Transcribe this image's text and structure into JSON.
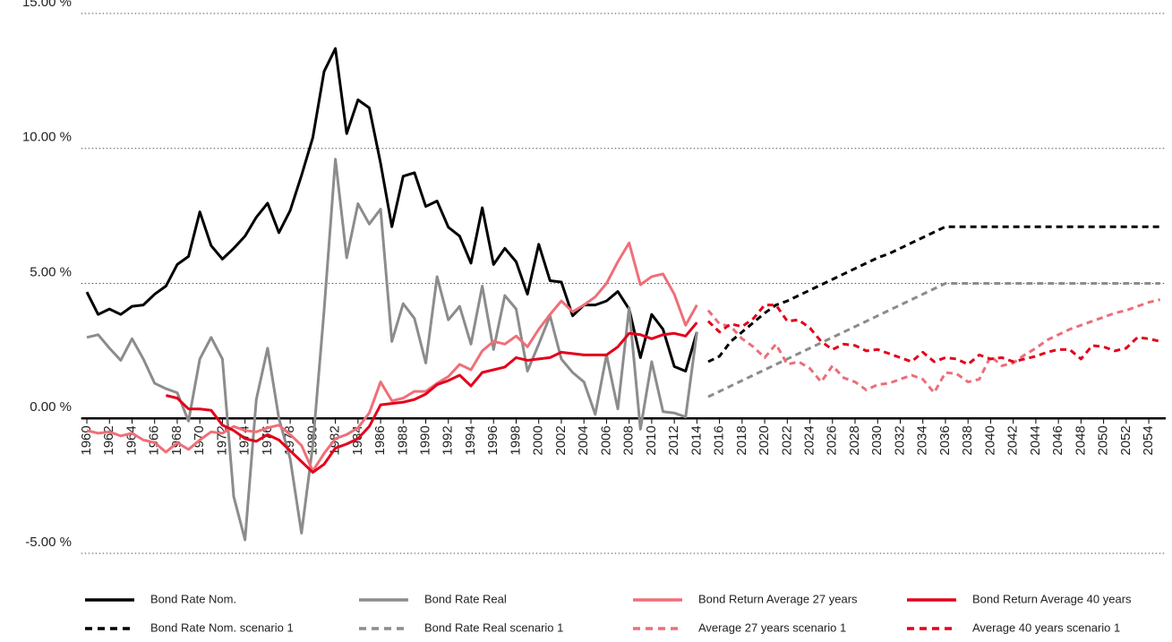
{
  "chart_data": {
    "type": "line",
    "x": [
      1960,
      1961,
      1962,
      1963,
      1964,
      1965,
      1966,
      1967,
      1968,
      1969,
      1970,
      1971,
      1972,
      1973,
      1974,
      1975,
      1976,
      1977,
      1978,
      1979,
      1980,
      1981,
      1982,
      1983,
      1984,
      1985,
      1986,
      1987,
      1988,
      1989,
      1990,
      1991,
      1992,
      1993,
      1994,
      1995,
      1996,
      1997,
      1998,
      1999,
      2000,
      2001,
      2002,
      2003,
      2004,
      2005,
      2006,
      2007,
      2008,
      2009,
      2010,
      2011,
      2012,
      2013,
      2014,
      2015,
      2016,
      2017,
      2018,
      2019,
      2020,
      2021,
      2022,
      2023,
      2024,
      2025,
      2026,
      2027,
      2028,
      2029,
      2030,
      2031,
      2032,
      2033,
      2034,
      2035,
      2036,
      2037,
      2038,
      2039,
      2040,
      2041,
      2042,
      2043,
      2044,
      2045,
      2046,
      2047,
      2048,
      2049,
      2050,
      2051,
      2052,
      2053,
      2054,
      2055
    ],
    "xlim": [
      1959.5,
      2055.5
    ],
    "xticks": [
      1960,
      1962,
      1964,
      1966,
      1968,
      1970,
      1972,
      1974,
      1976,
      1978,
      1980,
      1982,
      1984,
      1986,
      1988,
      1990,
      1992,
      1994,
      1996,
      1998,
      2000,
      2002,
      2004,
      2006,
      2008,
      2010,
      2012,
      2014,
      2016,
      2018,
      2020,
      2022,
      2024,
      2026,
      2028,
      2030,
      2032,
      2034,
      2036,
      2038,
      2040,
      2042,
      2044,
      2046,
      2048,
      2050,
      2052,
      2054
    ],
    "ylim": [
      -5,
      15
    ],
    "yticks": [
      {
        "value": -5,
        "label": "-5.00 %"
      },
      {
        "value": 0,
        "label": "0.00 %"
      },
      {
        "value": 5,
        "label": "5.00 %"
      },
      {
        "value": 10,
        "label": "10.00 %"
      },
      {
        "value": 15,
        "label": "15.00 %"
      }
    ],
    "grid": true,
    "legend": "bottom",
    "series": [
      {
        "name": "Bond Rate Nom.",
        "color": "#000000",
        "style": "solid",
        "values": [
          4.68,
          3.85,
          4.05,
          3.85,
          4.15,
          4.2,
          4.6,
          4.9,
          5.7,
          6.0,
          7.65,
          6.4,
          5.9,
          6.3,
          6.75,
          7.45,
          7.97,
          6.88,
          7.7,
          9.0,
          10.4,
          12.85,
          13.7,
          10.55,
          11.8,
          11.5,
          9.45,
          7.1,
          8.97,
          9.1,
          7.85,
          8.05,
          7.08,
          6.75,
          5.75,
          7.8,
          5.7,
          6.3,
          5.8,
          4.6,
          6.45,
          5.1,
          5.05,
          3.8,
          4.2,
          4.2,
          4.35,
          4.7,
          4.05,
          2.25,
          3.85,
          3.3,
          1.92,
          1.75,
          3.2,
          null,
          null,
          null,
          null,
          null,
          null,
          null,
          null,
          null,
          null,
          null,
          null,
          null,
          null,
          null,
          null,
          null,
          null,
          null,
          null,
          null,
          null,
          null,
          null,
          null,
          null,
          null,
          null,
          null,
          null,
          null,
          null,
          null,
          null,
          null,
          null,
          null,
          null,
          null,
          null,
          null
        ]
      },
      {
        "name": "Bond Rate Real",
        "color": "#8c8c8c",
        "style": "solid",
        "values": [
          3.0,
          3.1,
          2.6,
          2.15,
          2.95,
          2.2,
          1.3,
          1.1,
          0.95,
          -0.1,
          2.2,
          3.0,
          2.2,
          -2.9,
          -4.5,
          0.7,
          2.6,
          0.0,
          -1.5,
          -4.25,
          -1.0,
          4.0,
          9.6,
          5.95,
          7.95,
          7.2,
          7.75,
          2.85,
          4.25,
          3.7,
          2.05,
          5.25,
          3.65,
          4.15,
          2.75,
          4.9,
          2.55,
          4.55,
          4.05,
          1.75,
          2.75,
          3.8,
          2.2,
          1.7,
          1.35,
          0.15,
          2.35,
          0.35,
          4.1,
          -0.4,
          2.1,
          0.25,
          0.2,
          0.05,
          3.2,
          null,
          null,
          null,
          null,
          null,
          null,
          null,
          null,
          null,
          null,
          null,
          null,
          null,
          null,
          null,
          null,
          null,
          null,
          null,
          null,
          null,
          null,
          null,
          null,
          null,
          null,
          null,
          null,
          null,
          null,
          null,
          null,
          null,
          null,
          null,
          null,
          null,
          null,
          null,
          null,
          null
        ]
      },
      {
        "name": "Bond Return Average 27 years",
        "color": "#ef6f78",
        "style": "solid",
        "values": [
          -0.45,
          -0.55,
          -0.5,
          -0.65,
          -0.55,
          -0.8,
          -0.9,
          -1.25,
          -0.9,
          -1.15,
          -0.8,
          -0.5,
          -0.55,
          -0.3,
          -0.45,
          -0.5,
          -0.35,
          -0.25,
          -0.6,
          -1.0,
          -1.95,
          -1.3,
          -0.75,
          -0.6,
          -0.35,
          0.2,
          1.35,
          0.65,
          0.75,
          1.0,
          1.0,
          1.3,
          1.55,
          2.0,
          1.8,
          2.5,
          2.85,
          2.75,
          3.05,
          2.65,
          3.3,
          3.85,
          4.35,
          3.95,
          4.2,
          4.5,
          5.0,
          5.8,
          6.5,
          4.95,
          5.25,
          5.35,
          4.6,
          3.45,
          4.2,
          null,
          null,
          null,
          null,
          null,
          null,
          null,
          null,
          null,
          null,
          null,
          null,
          null,
          null,
          null,
          null,
          null,
          null,
          null,
          null,
          null,
          null,
          null,
          null,
          null,
          null,
          null,
          null,
          null,
          null,
          null,
          null,
          null,
          null,
          null,
          null,
          null,
          null,
          null,
          null,
          null
        ]
      },
      {
        "name": "Bond Return Average 40 years",
        "color": "#e3001b",
        "style": "solid",
        "values": [
          null,
          null,
          null,
          null,
          null,
          null,
          null,
          0.85,
          0.75,
          0.35,
          0.35,
          0.3,
          -0.25,
          -0.45,
          -0.75,
          -0.85,
          -0.6,
          -0.8,
          -1.2,
          -1.6,
          -2.0,
          -1.7,
          -1.1,
          -0.95,
          -0.75,
          -0.3,
          0.5,
          0.55,
          0.6,
          0.7,
          0.9,
          1.25,
          1.4,
          1.6,
          1.2,
          1.7,
          1.8,
          1.9,
          2.25,
          2.15,
          2.2,
          2.25,
          2.45,
          2.4,
          2.35,
          2.35,
          2.35,
          2.65,
          3.15,
          3.1,
          2.95,
          3.1,
          3.15,
          3.05,
          3.55,
          null,
          null,
          null,
          null,
          null,
          null,
          null,
          null,
          null,
          null,
          null,
          null,
          null,
          null,
          null,
          null,
          null,
          null,
          null,
          null,
          null,
          null,
          null,
          null,
          null,
          null,
          null,
          null,
          null,
          null,
          null,
          null,
          null,
          null,
          null,
          null,
          null,
          null,
          null,
          null,
          null
        ]
      },
      {
        "name": "Bond Rate Nom. scenario 1",
        "color": "#000000",
        "style": "dashed",
        "values": [
          null,
          null,
          null,
          null,
          null,
          null,
          null,
          null,
          null,
          null,
          null,
          null,
          null,
          null,
          null,
          null,
          null,
          null,
          null,
          null,
          null,
          null,
          null,
          null,
          null,
          null,
          null,
          null,
          null,
          null,
          null,
          null,
          null,
          null,
          null,
          null,
          null,
          null,
          null,
          null,
          null,
          null,
          null,
          null,
          null,
          null,
          null,
          null,
          null,
          null,
          null,
          null,
          null,
          null,
          null,
          2.1,
          2.3,
          2.85,
          3.2,
          3.55,
          3.9,
          4.2,
          4.35,
          4.55,
          4.75,
          4.95,
          5.15,
          5.35,
          5.55,
          5.75,
          5.95,
          6.1,
          6.3,
          6.5,
          6.7,
          6.9,
          7.1,
          7.1,
          7.1,
          7.1,
          7.1,
          7.1,
          7.1,
          7.1,
          7.1,
          7.1,
          7.1,
          7.1,
          7.1,
          7.1,
          7.1,
          7.1,
          7.1,
          7.1,
          7.1,
          7.1
        ]
      },
      {
        "name": "Bond Rate Real scenario 1",
        "color": "#8c8c8c",
        "style": "dashed",
        "values": [
          null,
          null,
          null,
          null,
          null,
          null,
          null,
          null,
          null,
          null,
          null,
          null,
          null,
          null,
          null,
          null,
          null,
          null,
          null,
          null,
          null,
          null,
          null,
          null,
          null,
          null,
          null,
          null,
          null,
          null,
          null,
          null,
          null,
          null,
          null,
          null,
          null,
          null,
          null,
          null,
          null,
          null,
          null,
          null,
          null,
          null,
          null,
          null,
          null,
          null,
          null,
          null,
          null,
          null,
          null,
          0.8,
          1.0,
          1.2,
          1.4,
          1.6,
          1.8,
          2.0,
          2.2,
          2.4,
          2.6,
          2.8,
          3.0,
          3.2,
          3.4,
          3.6,
          3.8,
          4.0,
          4.2,
          4.4,
          4.6,
          4.8,
          5.0,
          5.0,
          5.0,
          5.0,
          5.0,
          5.0,
          5.0,
          5.0,
          5.0,
          5.0,
          5.0,
          5.0,
          5.0,
          5.0,
          5.0,
          5.0,
          5.0,
          5.0,
          5.0,
          5.0
        ]
      },
      {
        "name": "Average 27 years scenario 1",
        "color": "#ec6e7a",
        "style": "dashed",
        "values": [
          null,
          null,
          null,
          null,
          null,
          null,
          null,
          null,
          null,
          null,
          null,
          null,
          null,
          null,
          null,
          null,
          null,
          null,
          null,
          null,
          null,
          null,
          null,
          null,
          null,
          null,
          null,
          null,
          null,
          null,
          null,
          null,
          null,
          null,
          null,
          null,
          null,
          null,
          null,
          null,
          null,
          null,
          null,
          null,
          null,
          null,
          null,
          null,
          null,
          null,
          null,
          null,
          null,
          null,
          null,
          4.0,
          3.5,
          3.4,
          2.95,
          2.65,
          2.25,
          2.75,
          2.0,
          2.1,
          1.85,
          1.35,
          1.95,
          1.5,
          1.35,
          1.05,
          1.25,
          1.3,
          1.45,
          1.6,
          1.45,
          0.95,
          1.7,
          1.65,
          1.35,
          1.45,
          2.3,
          1.95,
          2.05,
          2.35,
          2.6,
          2.9,
          3.1,
          3.3,
          3.45,
          3.6,
          3.75,
          3.9,
          4.0,
          4.15,
          4.3,
          4.4
        ]
      },
      {
        "name": "Average 40 years scenario 1",
        "color": "#e3001b",
        "style": "dashed",
        "values": [
          null,
          null,
          null,
          null,
          null,
          null,
          null,
          null,
          null,
          null,
          null,
          null,
          null,
          null,
          null,
          null,
          null,
          null,
          null,
          null,
          null,
          null,
          null,
          null,
          null,
          null,
          null,
          null,
          null,
          null,
          null,
          null,
          null,
          null,
          null,
          null,
          null,
          null,
          null,
          null,
          null,
          null,
          null,
          null,
          null,
          null,
          null,
          null,
          null,
          null,
          null,
          null,
          null,
          null,
          null,
          3.6,
          3.2,
          3.5,
          3.4,
          3.7,
          4.2,
          4.2,
          3.6,
          3.65,
          3.35,
          2.85,
          2.55,
          2.75,
          2.7,
          2.5,
          2.55,
          2.4,
          2.25,
          2.1,
          2.45,
          2.1,
          2.25,
          2.2,
          2.0,
          2.35,
          2.2,
          2.25,
          2.1,
          2.2,
          2.3,
          2.45,
          2.55,
          2.55,
          2.2,
          2.7,
          2.65,
          2.5,
          2.6,
          3.0,
          2.95,
          2.85
        ]
      }
    ]
  }
}
